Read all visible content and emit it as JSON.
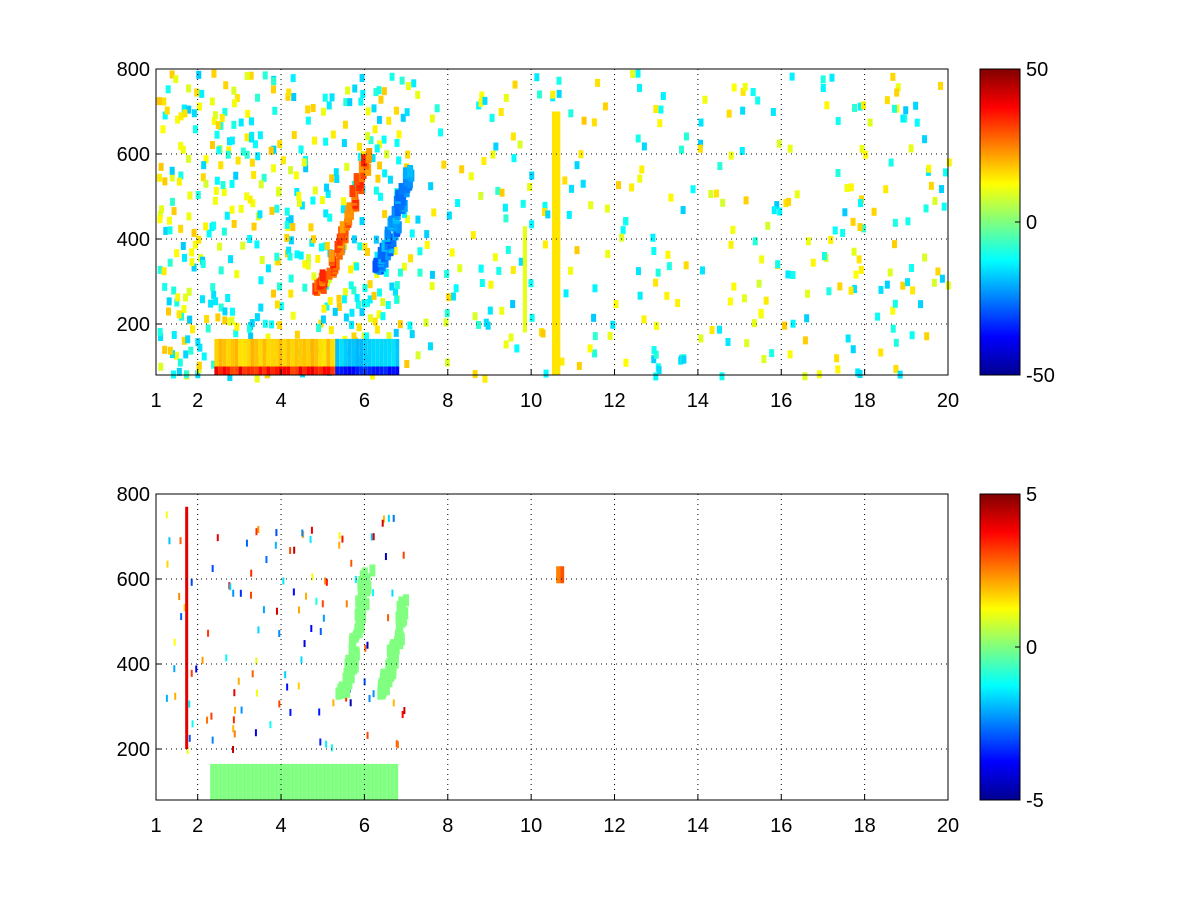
{
  "chart_data": [
    {
      "type": "heatmap",
      "title": "",
      "xlabel": "",
      "ylabel": "",
      "xlim": [
        1,
        20
      ],
      "ylim": [
        80,
        800
      ],
      "x_ticks": [
        "1",
        "2",
        "4",
        "6",
        "8",
        "10",
        "12",
        "14",
        "16",
        "18",
        "20"
      ],
      "y_ticks": [
        "200",
        "400",
        "600",
        "800"
      ],
      "grid": true,
      "colormap": "jet",
      "colorbar": {
        "range": [
          -50,
          50
        ],
        "tick_labels": [
          "50",
          "0",
          "-50"
        ]
      },
      "features": [
        {
          "x": [
            2.4,
            5.3
          ],
          "y": [
            80,
            100
          ],
          "value": 40
        },
        {
          "x": [
            2.4,
            5.3
          ],
          "y": [
            100,
            165
          ],
          "value": 20
        },
        {
          "x": [
            5.3,
            6.8
          ],
          "y": [
            80,
            100
          ],
          "value": -40
        },
        {
          "x": [
            5.3,
            6.8
          ],
          "y": [
            100,
            165
          ],
          "value": -20
        },
        {
          "x": [
            4.8,
            6.0
          ],
          "y": [
            280,
            600
          ],
          "value": 35,
          "shape": "diagonal-ridge"
        },
        {
          "x": [
            6.2,
            7.0
          ],
          "y": [
            330,
            560
          ],
          "value": -30,
          "shape": "diagonal-ridge"
        },
        {
          "x": [
            10.5,
            10.7
          ],
          "y": [
            80,
            700
          ],
          "value": 15,
          "shape": "vertical-line"
        },
        {
          "x": [
            9.8,
            9.9
          ],
          "y": [
            180,
            430
          ],
          "value": 10,
          "shape": "vertical-line"
        }
      ]
    },
    {
      "type": "heatmap",
      "title": "",
      "xlabel": "",
      "ylabel": "",
      "xlim": [
        1,
        20
      ],
      "ylim": [
        80,
        800
      ],
      "x_ticks": [
        "1",
        "2",
        "4",
        "6",
        "8",
        "10",
        "12",
        "14",
        "16",
        "18",
        "20"
      ],
      "y_ticks": [
        "200",
        "400",
        "600",
        "800"
      ],
      "grid": true,
      "colormap": "jet",
      "colorbar": {
        "range": [
          -5,
          5
        ],
        "tick_labels": [
          "5",
          "0",
          "-5"
        ]
      },
      "features": [
        {
          "x": [
            2.3,
            6.8
          ],
          "y": [
            80,
            165
          ],
          "value": 0
        },
        {
          "x": [
            5.4,
            6.0
          ],
          "y": [
            330,
            620
          ],
          "value": 0,
          "shape": "diagonal-ridge"
        },
        {
          "x": [
            6.3,
            6.9
          ],
          "y": [
            330,
            550
          ],
          "value": 0,
          "shape": "diagonal-ridge"
        },
        {
          "x": [
            1.7,
            1.75
          ],
          "y": [
            200,
            770
          ],
          "value": 4,
          "shape": "vertical-line"
        },
        {
          "x": [
            10.6,
            10.7
          ],
          "y": [
            590,
            630
          ],
          "value": 3
        }
      ]
    }
  ]
}
